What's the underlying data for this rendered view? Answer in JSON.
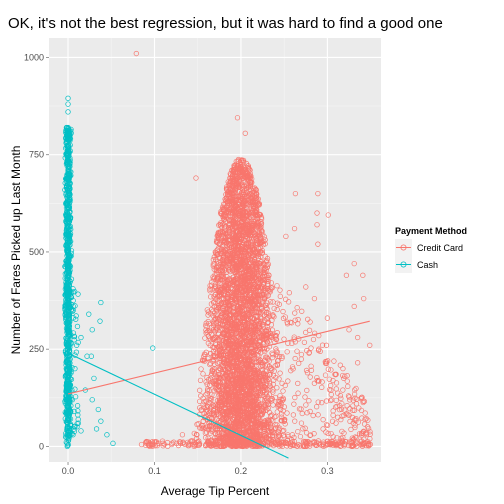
{
  "chart_data": {
    "type": "scatter",
    "title": "OK, it's not the best regression, but it was hard to find a good one",
    "xlabel": "Average Tip Percent",
    "ylabel": "Number of Fares Picked up Last Month",
    "xlim": [
      -0.022,
      0.362
    ],
    "ylim": [
      -40,
      1050
    ],
    "x_ticks": [
      0.0,
      0.1,
      0.2,
      0.3
    ],
    "x_tick_labels": [
      "0.0",
      "0.1",
      "0.2",
      "0.3"
    ],
    "y_ticks": [
      0,
      250,
      500,
      750,
      1000
    ],
    "y_tick_labels": [
      "0",
      "250",
      "500",
      "750",
      "1000"
    ],
    "grid": true,
    "legend": {
      "title": "Payment Method",
      "position": "right",
      "entries": [
        "Credit Card",
        "Cash"
      ]
    },
    "colors": {
      "Credit Card": "#F8766D",
      "Cash": "#00BFC4",
      "panel": "#EBEBEB",
      "grid": "#FFFFFF"
    },
    "series": [
      {
        "name": "Credit Card",
        "color": "#F8766D",
        "description_points": [
          [
            0.079,
            1010
          ],
          [
            0.196,
            845
          ],
          [
            0.205,
            805
          ],
          [
            0.148,
            690
          ],
          [
            0.263,
            650
          ],
          [
            0.289,
            650
          ],
          [
            0.288,
            600
          ],
          [
            0.288,
            570
          ],
          [
            0.301,
            595
          ],
          [
            0.262,
            560
          ],
          [
            0.252,
            540
          ],
          [
            0.289,
            520
          ],
          [
            0.322,
            440
          ],
          [
            0.331,
            470
          ],
          [
            0.341,
            440
          ],
          [
            0.342,
            380
          ],
          [
            0.331,
            360
          ],
          [
            0.349,
            260
          ],
          [
            0.335,
            215
          ],
          [
            0.323,
            168
          ],
          [
            0.12,
            5
          ],
          [
            0.13,
            8
          ],
          [
            0.14,
            5
          ],
          [
            0.15,
            12
          ],
          [
            0.16,
            6
          ],
          [
            0.17,
            12
          ],
          [
            0.18,
            8
          ],
          [
            0.095,
            5
          ],
          [
            0.105,
            8
          ],
          [
            0.115,
            10
          ],
          [
            0.09,
            3
          ],
          [
            0.085,
            5
          ],
          [
            0.31,
            2
          ],
          [
            0.32,
            5
          ],
          [
            0.33,
            3
          ],
          [
            0.34,
            5
          ],
          [
            0.345,
            2
          ],
          [
            0.27,
            60
          ],
          [
            0.28,
            90
          ],
          [
            0.295,
            45
          ],
          [
            0.305,
            120
          ],
          [
            0.312,
            75
          ],
          [
            0.318,
            200
          ],
          [
            0.325,
            300
          ],
          [
            0.335,
            280
          ],
          [
            0.3,
            330
          ],
          [
            0.29,
            250
          ],
          [
            0.28,
            320
          ],
          [
            0.285,
            380
          ],
          [
            0.275,
            410
          ]
        ],
        "dense_cloud": {
          "x_center": 0.2,
          "x_spread": 0.018,
          "y_max": 740,
          "note": "dense cluster of circles centered near 0.2 spanning 0 to ~740"
        },
        "regression": {
          "x": [
            0.0,
            0.349
          ],
          "y": [
            135,
            322
          ]
        }
      },
      {
        "name": "Cash",
        "color": "#00BFC4",
        "description_points": [
          [
            0.0,
            895
          ],
          [
            0.0,
            880
          ],
          [
            0.0,
            860
          ],
          [
            0.0,
            820
          ],
          [
            0.0,
            795
          ],
          [
            0.0,
            760
          ],
          [
            0.0,
            700
          ],
          [
            0.0,
            650
          ],
          [
            0.038,
            370
          ],
          [
            0.024,
            340
          ],
          [
            0.037,
            322
          ],
          [
            0.028,
            300
          ],
          [
            0.015,
            280
          ],
          [
            0.022,
            232
          ],
          [
            0.027,
            232
          ],
          [
            0.098,
            253
          ],
          [
            0.03,
            175
          ],
          [
            0.02,
            145
          ],
          [
            0.028,
            120
          ],
          [
            0.035,
            95
          ],
          [
            0.038,
            65
          ],
          [
            0.033,
            45
          ],
          [
            0.045,
            30
          ],
          [
            0.052,
            8
          ],
          [
            0.005,
            120
          ],
          [
            0.008,
            200
          ],
          [
            0.01,
            260
          ],
          [
            0.006,
            350
          ],
          [
            0.004,
            430
          ],
          [
            0.007,
            90
          ],
          [
            0.012,
            60
          ],
          [
            0.015,
            40
          ]
        ],
        "dense_cloud": {
          "x_center": 0.0,
          "x_spread": 0.0015,
          "y_max": 820,
          "note": "dense vertical band of circles at x=0 spanning 0 to ~820"
        },
        "regression": {
          "x": [
            0.0,
            0.255
          ],
          "y": [
            240,
            -30
          ]
        }
      }
    ]
  }
}
